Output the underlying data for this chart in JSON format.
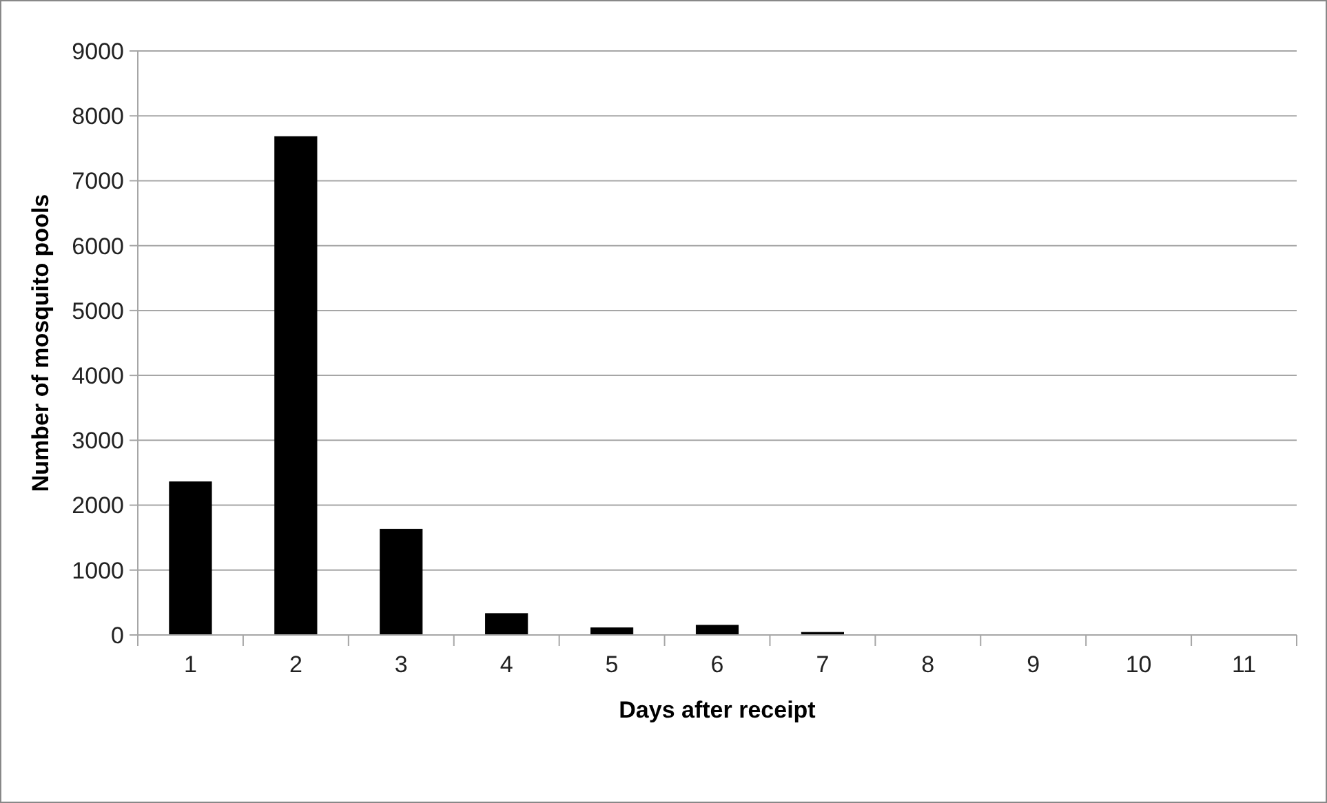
{
  "chart_data": {
    "type": "bar",
    "xlabel": "Days after receipt",
    "ylabel": "Number of mosquito pools",
    "categories": [
      "1",
      "2",
      "3",
      "4",
      "5",
      "6",
      "7",
      "8",
      "9",
      "10",
      "11"
    ],
    "values": [
      2360,
      7680,
      1630,
      330,
      110,
      150,
      40,
      0,
      0,
      0,
      0
    ],
    "color": "#000000",
    "ylim": [
      0,
      9000
    ],
    "yticks": [
      0,
      1000,
      2000,
      3000,
      4000,
      5000,
      6000,
      7000,
      8000,
      9000
    ],
    "grid": "y"
  }
}
